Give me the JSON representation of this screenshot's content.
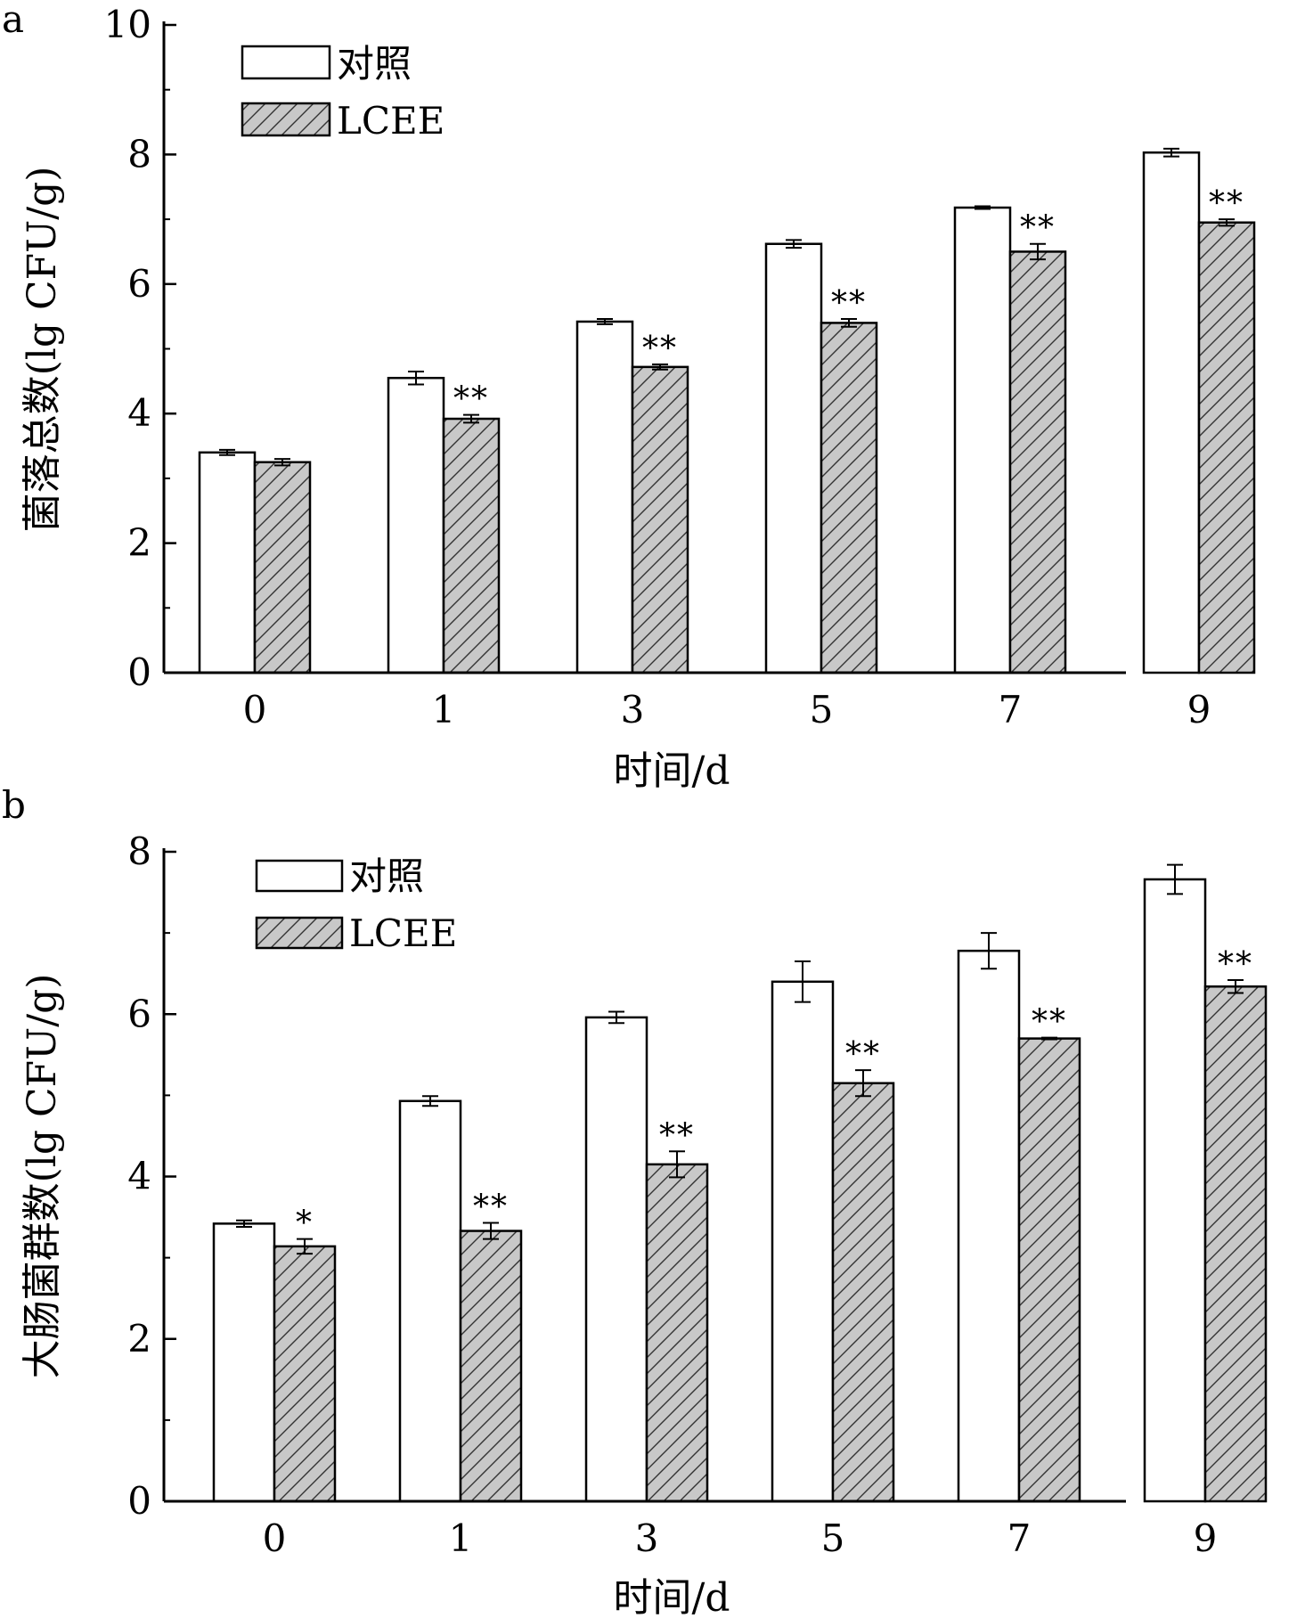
{
  "colors": {
    "control_fill": "#ffffff",
    "treatment_fill": "#c8c8c8",
    "hatch": "#333333",
    "axis": "#000000"
  },
  "chart_data": [
    {
      "type": "bar",
      "panel_label": "a",
      "categories": [
        "0",
        "1",
        "3",
        "5",
        "7",
        "9"
      ],
      "xlabel": "时间/d",
      "ylabel": "菌落总数(lg CFU/g)",
      "ylim": [
        0,
        10
      ],
      "yticks": [
        "0",
        "2",
        "4",
        "6",
        "8",
        "10"
      ],
      "legend_position": "top-left",
      "series": [
        {
          "name": "对照",
          "values": [
            3.4,
            4.55,
            5.42,
            6.62,
            7.18,
            8.03
          ],
          "errors": [
            0.04,
            0.1,
            0.04,
            0.06,
            0.02,
            0.06
          ],
          "significance": [
            "",
            "",
            "",
            "",
            "",
            ""
          ]
        },
        {
          "name": "LCEE",
          "values": [
            3.25,
            3.92,
            4.72,
            5.4,
            6.5,
            6.95
          ],
          "errors": [
            0.05,
            0.06,
            0.04,
            0.06,
            0.12,
            0.05
          ],
          "significance": [
            "",
            "**",
            "**",
            "**",
            "**",
            "**"
          ]
        }
      ]
    },
    {
      "type": "bar",
      "panel_label": "b",
      "categories": [
        "0",
        "1",
        "3",
        "5",
        "7",
        "9"
      ],
      "xlabel": "时间/d",
      "ylabel": "大肠菌群数(lg CFU/g)",
      "ylim": [
        0,
        8
      ],
      "yticks": [
        "0",
        "2",
        "4",
        "6",
        "8"
      ],
      "legend_position": "top-left",
      "series": [
        {
          "name": "对照",
          "values": [
            3.42,
            4.93,
            5.96,
            6.4,
            6.78,
            7.66
          ],
          "errors": [
            0.04,
            0.06,
            0.07,
            0.25,
            0.22,
            0.18
          ],
          "significance": [
            "",
            "",
            "",
            "",
            "",
            ""
          ]
        },
        {
          "name": "LCEE",
          "values": [
            3.14,
            3.33,
            4.15,
            5.15,
            5.7,
            6.34
          ],
          "errors": [
            0.09,
            0.1,
            0.16,
            0.16,
            0.01,
            0.08
          ],
          "significance": [
            "*",
            "**",
            "**",
            "**",
            "**",
            "**"
          ]
        }
      ]
    }
  ]
}
